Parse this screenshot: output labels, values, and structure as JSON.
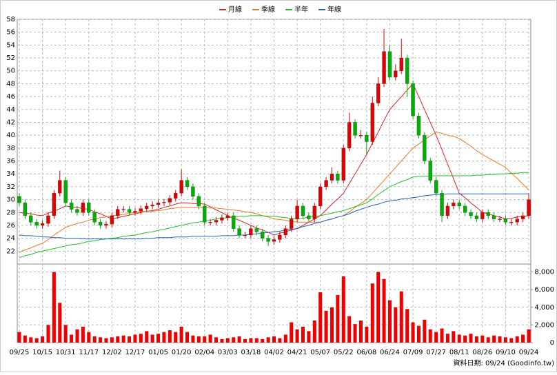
{
  "chart_data": [
    {
      "type": "candlestick",
      "legend": "top",
      "grid": true,
      "up_color": "#e00000",
      "down_color": "#00b000",
      "ylim": [
        20,
        58
      ],
      "yticks": [
        22,
        24,
        26,
        28,
        30,
        32,
        34,
        36,
        38,
        40,
        42,
        44,
        46,
        48,
        50,
        52,
        54,
        56,
        58
      ],
      "open": [
        30.5,
        29.5,
        27.5,
        26.5,
        26,
        26.3,
        27.5,
        31,
        33,
        29.5,
        28.5,
        28,
        29.5,
        28,
        26.5,
        26,
        26.2,
        27.5,
        28.5,
        28.5,
        28,
        28.2,
        28.6,
        29,
        29.2,
        29.5,
        29.6,
        30.2,
        31,
        33,
        32,
        30.5,
        29,
        26.5,
        26.5,
        26.8,
        27.2,
        27.5,
        25.5,
        24.5,
        24.5,
        25.5,
        25,
        24,
        23.5,
        23.8,
        24.5,
        25.5,
        27,
        29,
        27.5,
        27,
        29,
        32,
        33,
        34,
        33,
        38,
        42,
        40,
        40,
        39,
        45,
        48,
        53,
        49,
        50,
        52,
        48,
        43,
        40,
        36,
        33,
        31,
        27.5,
        29,
        29.5,
        29,
        28,
        27.5,
        27,
        28,
        27.5,
        27,
        27,
        26.5,
        26.5,
        27,
        27.5
      ],
      "high": [
        31,
        30,
        28,
        27,
        26.8,
        28,
        31.5,
        34.5,
        33.5,
        30,
        29,
        30,
        30,
        28.5,
        27,
        26.7,
        28,
        29,
        29,
        29,
        28.7,
        29.1,
        29.5,
        29.7,
        30,
        30.1,
        30.7,
        31.5,
        34.7,
        33.5,
        32.5,
        31,
        29.5,
        27,
        27.3,
        27.7,
        28,
        28,
        26,
        25,
        26,
        26,
        25.5,
        24.5,
        24.3,
        25,
        26,
        27.5,
        30,
        29.5,
        28,
        29.5,
        32.5,
        33.5,
        35,
        34.5,
        38.5,
        43.5,
        42.5,
        40.8,
        40.5,
        46,
        49,
        56.5,
        54,
        51,
        55,
        52.5,
        48.5,
        43.5,
        40.5,
        36.5,
        33.5,
        31.5,
        29.5,
        30,
        30,
        29.5,
        28.5,
        28,
        28.5,
        28.5,
        28,
        27.5,
        27.5,
        27,
        27.5,
        28,
        31
      ],
      "low": [
        29,
        27,
        26,
        25.5,
        25.5,
        25.8,
        27,
        30.5,
        29,
        28,
        27.5,
        27.5,
        27.5,
        26,
        25.5,
        25.5,
        25.7,
        27,
        28,
        27.5,
        27.5,
        27.7,
        28.1,
        28.5,
        28.7,
        29,
        29.1,
        29.7,
        30.5,
        31.5,
        30,
        28.5,
        26,
        26,
        26,
        26.3,
        26.7,
        25,
        24,
        24,
        24,
        24.5,
        23.5,
        22.8,
        23,
        23.3,
        24,
        25,
        26.5,
        27,
        26.5,
        26.5,
        28.5,
        31.5,
        32.5,
        32.5,
        32.5,
        37.5,
        39.5,
        39.5,
        37,
        38.5,
        44.5,
        47.5,
        48.5,
        48.5,
        49.5,
        46,
        42.5,
        39.5,
        35.5,
        32.5,
        30.5,
        26.5,
        27,
        28.5,
        28.5,
        27.5,
        27,
        26.5,
        26.5,
        27,
        26.5,
        26.5,
        26,
        26,
        26,
        26.5,
        27
      ],
      "close": [
        29.5,
        27.5,
        26.5,
        26,
        26.3,
        27.5,
        31,
        33,
        29.5,
        28.5,
        28,
        29.5,
        28,
        26.5,
        26,
        26.2,
        27.5,
        28.5,
        28.5,
        28,
        28.2,
        28.6,
        29,
        29.2,
        29.5,
        29.6,
        30.2,
        31,
        33,
        32,
        30.5,
        29,
        26.5,
        26.5,
        26.8,
        27.2,
        27.5,
        25.5,
        24.5,
        24.5,
        25.5,
        25,
        24,
        23.5,
        23.8,
        24.5,
        25.5,
        27,
        29,
        27.5,
        27,
        29,
        32,
        33,
        34,
        33,
        38,
        42,
        40,
        40,
        39,
        45,
        48,
        53,
        49,
        50,
        52,
        48,
        43,
        40,
        36,
        33,
        31,
        27.5,
        29,
        29.5,
        29,
        28,
        27.5,
        27,
        28,
        27.5,
        27,
        27,
        26.5,
        26.5,
        27,
        27.5,
        30
      ],
      "series": [
        {
          "name": "月線",
          "color": "#e02020",
          "values": [
            28,
            27.9,
            27.8,
            27.6,
            27.5,
            27.9,
            28.2,
            28.6,
            29,
            28.9,
            28.8,
            28.6,
            28.5,
            28.1,
            27.8,
            27.4,
            27,
            27.2,
            27.4,
            27.6,
            27.8,
            28,
            28.2,
            28.3,
            28.5,
            28.8,
            29,
            29.3,
            29.5,
            29.5,
            29.4,
            29.4,
            29.3,
            28.9,
            28.4,
            28,
            27.5,
            27.1,
            26.8,
            26.4,
            26,
            25.6,
            25.3,
            24.9,
            24.5,
            24.8,
            25,
            25.3,
            25.5,
            26,
            26.5,
            27,
            27.5,
            28.4,
            29.3,
            30.1,
            31,
            32.5,
            34,
            35.5,
            37,
            38.8,
            40.5,
            42.3,
            44,
            45,
            46,
            47,
            48,
            46,
            44,
            42,
            40,
            37.8,
            35.5,
            33.3,
            31,
            30.3,
            29.5,
            28.8,
            28,
            27.8,
            27.5,
            27.3,
            27,
            27.1,
            27.3,
            27.4,
            27.5
          ]
        },
        {
          "name": "季線",
          "color": "#f07820",
          "values": [
            21.8,
            22.2,
            22.5,
            22.9,
            23.2,
            23.8,
            24.5,
            25.1,
            25.7,
            26,
            26.3,
            26.5,
            26.8,
            27,
            27.2,
            27.3,
            27.5,
            27.6,
            27.7,
            27.9,
            28,
            28.1,
            28.2,
            28.2,
            28.3,
            28.4,
            28.6,
            28.7,
            28.8,
            28.8,
            28.8,
            28.8,
            28.8,
            28.7,
            28.7,
            28.6,
            28.5,
            28.4,
            28.3,
            28.1,
            28,
            27.8,
            27.5,
            27.3,
            27,
            26.9,
            26.8,
            26.6,
            26.5,
            26.5,
            26.5,
            26.5,
            26.5,
            26.8,
            27,
            27.3,
            27.5,
            28.1,
            28.8,
            29.4,
            30,
            31,
            32,
            33,
            34,
            35,
            36,
            37,
            38,
            38.6,
            39.3,
            39.9,
            40.5,
            40.3,
            40,
            39.8,
            39.5,
            38.9,
            38.3,
            37.6,
            37,
            36.5,
            36,
            35.5,
            35,
            34.1,
            33.3,
            32.4,
            31.5
          ]
        },
        {
          "name": "半年",
          "color": "#20c020",
          "values": [
            21,
            21.3,
            21.5,
            21.8,
            22,
            22.2,
            22.4,
            22.6,
            22.8,
            23,
            23.1,
            23.3,
            23.5,
            23.6,
            23.8,
            23.9,
            24,
            24.1,
            24.3,
            24.4,
            24.5,
            24.7,
            24.9,
            25,
            25.2,
            25.4,
            25.6,
            25.8,
            26,
            26.2,
            26.4,
            26.5,
            26.7,
            26.8,
            27,
            27.1,
            27.2,
            27.3,
            27.4,
            27.4,
            27.5,
            27.5,
            27.5,
            27.4,
            27.4,
            27.3,
            27.2,
            27.1,
            27,
            27.1,
            27.3,
            27.4,
            27.5,
            27.7,
            27.9,
            28.1,
            28.3,
            28.6,
            28.9,
            29.2,
            29.5,
            30.1,
            30.8,
            31.4,
            32,
            32.4,
            32.8,
            33.1,
            33.5,
            33.6,
            33.6,
            33.7,
            33.7,
            33.7,
            33.7,
            33.7,
            33.7,
            33.7,
            33.7,
            33.8,
            33.8,
            33.9,
            33.9,
            34,
            34,
            34.1,
            34.1,
            34.2,
            34.2
          ]
        },
        {
          "name": "年線",
          "color": "#2060d0",
          "values": [
            24.5,
            24.4,
            24.4,
            24.3,
            24.2,
            24.2,
            24.1,
            24.1,
            24,
            24,
            24,
            23.9,
            23.9,
            23.9,
            23.9,
            23.9,
            23.9,
            23.9,
            23.9,
            23.9,
            23.9,
            23.9,
            24,
            24,
            24.1,
            24.1,
            24.1,
            24.2,
            24.2,
            24.2,
            24.3,
            24.3,
            24.3,
            24.3,
            24.3,
            24.4,
            24.4,
            24.4,
            24.5,
            24.5,
            24.6,
            24.7,
            24.8,
            24.9,
            25,
            25.1,
            25.3,
            25.4,
            25.5,
            25.8,
            26,
            26.3,
            26.5,
            26.8,
            27,
            27.3,
            27.5,
            27.8,
            28.2,
            28.5,
            28.8,
            29.1,
            29.3,
            29.6,
            29.8,
            29.9,
            30.1,
            30.2,
            30.3,
            30.4,
            30.6,
            30.7,
            30.8,
            30.8,
            30.9,
            30.9,
            30.9,
            30.9,
            30.9,
            30.9,
            30.9,
            30.9,
            30.9,
            30.9,
            30.9,
            30.9,
            30.9,
            30.9,
            30.9
          ]
        }
      ]
    },
    {
      "type": "bar",
      "color": "#ee0000",
      "grid": true,
      "ylim": [
        0,
        8900
      ],
      "yticks": [
        0,
        {
          "value": 2000,
          "label": "2,000"
        },
        {
          "value": 4000,
          "label": "4,000"
        },
        {
          "value": 6000,
          "label": "6,000"
        },
        {
          "value": 8000,
          "label": "8,000"
        }
      ],
      "categories": [
        "09/25",
        null,
        null,
        null,
        "10/15",
        null,
        null,
        null,
        "10/31",
        null,
        null,
        null,
        "11/17",
        null,
        null,
        null,
        "12/02",
        null,
        null,
        null,
        "12/17",
        null,
        null,
        null,
        "01/05",
        null,
        null,
        null,
        "01/20",
        null,
        null,
        null,
        "02/04",
        null,
        null,
        null,
        "03/03",
        null,
        null,
        null,
        "03/18",
        null,
        null,
        null,
        "04/02",
        null,
        null,
        null,
        "04/21",
        null,
        null,
        null,
        "05/07",
        null,
        null,
        null,
        "05/22",
        null,
        null,
        null,
        "06/08",
        null,
        null,
        null,
        "06/24",
        null,
        null,
        null,
        "07/09",
        null,
        null,
        null,
        "07/27",
        null,
        null,
        null,
        "08/11",
        null,
        null,
        null,
        "08/26",
        null,
        null,
        null,
        "09/10",
        null,
        null,
        null,
        "09/24"
      ],
      "values": [
        1200,
        800,
        600,
        500,
        700,
        2000,
        8000,
        4500,
        2000,
        900,
        1500,
        1800,
        1200,
        700,
        600,
        500,
        600,
        700,
        800,
        700,
        900,
        1000,
        1300,
        900,
        1000,
        1200,
        1400,
        1200,
        1800,
        1200,
        800,
        700,
        700,
        900,
        600,
        400,
        500,
        600,
        700,
        400,
        500,
        500,
        400,
        600,
        700,
        500,
        900,
        2300,
        1500,
        1800,
        1300,
        2500,
        5700,
        3600,
        4000,
        5400,
        7500,
        3000,
        2100,
        2500,
        1800,
        6700,
        8000,
        7200,
        4800,
        4000,
        5800,
        3800,
        2300,
        1900,
        2600,
        1500,
        1200,
        1600,
        1000,
        1300,
        900,
        800,
        1000,
        700,
        800,
        600,
        800,
        700,
        600,
        500,
        700,
        900,
        1500
      ],
      "footnote": "資料日期: 09/24  (Goodinfo.tw)"
    }
  ]
}
